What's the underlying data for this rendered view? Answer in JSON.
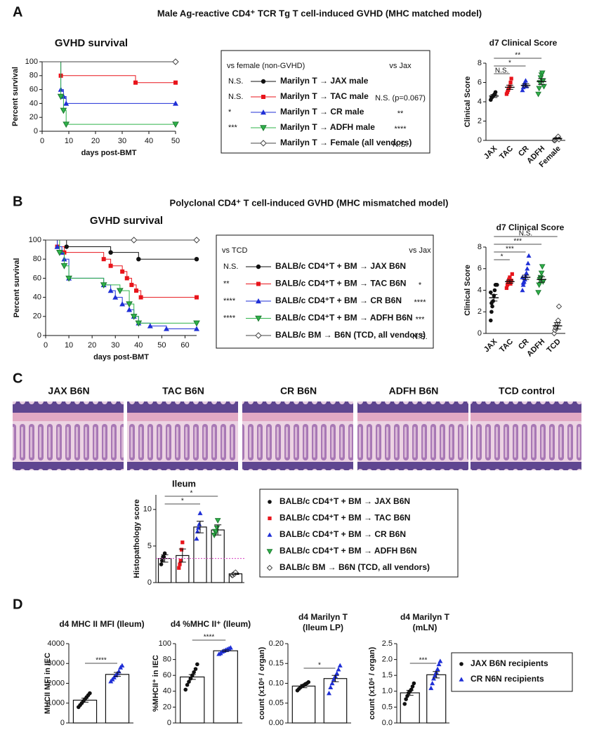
{
  "panel_labels": [
    "A",
    "B",
    "C",
    "D"
  ],
  "headings": [
    "Male Ag-reactive CD4⁺ TCR Tg T cell-induced GVHD (MHC matched model)",
    "Polyclonal CD4⁺ T cell-induced GVHD (MHC mismatched model)"
  ],
  "histology": {
    "labels": [
      "JAX B6N",
      "TAC B6N",
      "CR B6N",
      "ADFH B6N",
      "TCD control"
    ]
  },
  "panel_d_legend": {
    "names": [
      "JAX B6N recipients",
      "CR N6N recipients"
    ],
    "colors": [
      "#111111",
      "#1f2fd6"
    ],
    "markers": [
      "circle",
      "triangle"
    ]
  },
  "chart_data": [
    {
      "type": "survival",
      "title": "GVHD survival",
      "xlabel": "days post-BMT",
      "ylabel": "Percent survival",
      "xlim": [
        0,
        50
      ],
      "ylim": [
        0,
        100
      ],
      "xticks": [
        0,
        10,
        20,
        30,
        40,
        50
      ],
      "yticks": [
        0,
        20,
        40,
        60,
        80,
        100
      ],
      "legend_headers": [
        "vs female (non-GVHD)",
        "vs Jax"
      ],
      "series": [
        {
          "name": "Marilyn T → JAX male",
          "color": "#111111",
          "marker": "circle",
          "x": [
            0,
            50
          ],
          "values": [
            100,
            100
          ],
          "stat_left": "N.S."
        },
        {
          "name": "Marilyn T → TAC male",
          "color": "#e8141b",
          "marker": "square",
          "x": [
            0,
            7,
            35,
            50
          ],
          "values": [
            100,
            80,
            70,
            70
          ],
          "stat_left": "N.S.",
          "stat_right": "N.S. (p=0.067)"
        },
        {
          "name": "Marilyn T → CR male",
          "color": "#1f2fd6",
          "marker": "triangle",
          "x": [
            0,
            7,
            8,
            9,
            50
          ],
          "values": [
            100,
            60,
            50,
            40,
            40
          ],
          "stat_left": "*",
          "stat_right": "**"
        },
        {
          "name": "Marilyn T → ADFH male",
          "color": "#2fb34a",
          "marker": "triangle-down",
          "x": [
            0,
            7,
            8,
            9,
            50
          ],
          "values": [
            100,
            50,
            30,
            10,
            10
          ],
          "stat_left": "***",
          "stat_right": "****"
        },
        {
          "name": "Marilyn T → Female (all vendors)",
          "color": "#444444",
          "marker": "diamond",
          "x": [
            0,
            50
          ],
          "values": [
            100,
            100
          ],
          "stat_right": "N.S."
        }
      ]
    },
    {
      "type": "dot",
      "title": "d7 Clinical Score",
      "ylabel": "Clinical Score",
      "ylim": [
        0,
        8
      ],
      "yticks": [
        0,
        2,
        4,
        6,
        8
      ],
      "categories": [
        "JAX",
        "TAC",
        "CR",
        "ADFH",
        "Female"
      ],
      "colors": [
        "#111111",
        "#e8141b",
        "#1f2fd6",
        "#2fb34a",
        "#444444"
      ],
      "markers": [
        "circle",
        "square",
        "triangle",
        "triangle-down",
        "diamond"
      ],
      "values": [
        4.6,
        5.5,
        5.7,
        6.1,
        0.2
      ],
      "errors": [
        0.15,
        0.22,
        0.17,
        0.3,
        0.06
      ],
      "points": [
        [
          4.2,
          4.4,
          4.5,
          4.6,
          4.7,
          4.8,
          5.0
        ],
        [
          4.8,
          5.0,
          5.2,
          5.4,
          5.6,
          6.0,
          6.4
        ],
        [
          5.2,
          5.5,
          5.8,
          6.0,
          6.2,
          5.6
        ],
        [
          4.8,
          5.4,
          6.0,
          6.5,
          6.8,
          7.0,
          6.2,
          5.6
        ],
        [
          0,
          0,
          0.1,
          0.2,
          0.3,
          0.4,
          0.1
        ]
      ],
      "comparisons": [
        {
          "groups": [
            "JAX",
            "TAC"
          ],
          "label": "N.S."
        },
        {
          "groups": [
            "JAX",
            "CR"
          ],
          "label": "*"
        },
        {
          "groups": [
            "JAX",
            "ADFH"
          ],
          "label": "**"
        }
      ]
    },
    {
      "type": "survival",
      "title": "GVHD survival",
      "xlabel": "days post-BMT",
      "ylabel": "Percent survival",
      "xlim": [
        0,
        65
      ],
      "ylim": [
        0,
        100
      ],
      "xticks": [
        0,
        10,
        20,
        30,
        40,
        50,
        60
      ],
      "yticks": [
        0,
        20,
        40,
        60,
        80,
        100
      ],
      "legend_headers": [
        "vs TCD",
        "vs Jax"
      ],
      "series": [
        {
          "name": "BALB/c CD4⁺T + BM → JAX B6N",
          "color": "#111111",
          "marker": "circle",
          "x": [
            0,
            9,
            28,
            40,
            65
          ],
          "values": [
            100,
            93,
            87,
            80,
            80
          ],
          "stat_left": "N.S."
        },
        {
          "name": "BALB/c CD4⁺T + BM → TAC B6N",
          "color": "#e8141b",
          "marker": "square",
          "x": [
            0,
            5,
            8,
            25,
            28,
            33,
            35,
            37,
            39,
            41,
            65
          ],
          "values": [
            100,
            93,
            87,
            80,
            73,
            67,
            60,
            53,
            47,
            40,
            40
          ],
          "stat_left": "**",
          "stat_right": "*"
        },
        {
          "name": "BALB/c CD4⁺T + BM → CR B6N",
          "color": "#1f2fd6",
          "marker": "triangle",
          "x": [
            0,
            5,
            7,
            8,
            10,
            25,
            28,
            30,
            33,
            36,
            38,
            40,
            45,
            52,
            65
          ],
          "values": [
            100,
            93,
            87,
            80,
            60,
            53,
            47,
            40,
            33,
            27,
            20,
            13,
            10,
            7,
            7
          ],
          "stat_left": "****",
          "stat_right": "****"
        },
        {
          "name": "BALB/c CD4⁺T + BM → ADFH B6N",
          "color": "#2fb34a",
          "marker": "triangle-down",
          "x": [
            0,
            6,
            8,
            10,
            25,
            32,
            36,
            38,
            40,
            65
          ],
          "values": [
            100,
            87,
            73,
            60,
            53,
            47,
            33,
            20,
            13,
            13
          ],
          "stat_left": "****",
          "stat_right": "***"
        },
        {
          "name": "BALB/c BM → B6N (TCD, all vendors)",
          "color": "#444444",
          "marker": "diamond",
          "x": [
            0,
            38,
            65
          ],
          "values": [
            100,
            100,
            100
          ],
          "stat_right": "N.S."
        }
      ]
    },
    {
      "type": "dot",
      "title": "d7 Clinical Score",
      "ylabel": "Clinical Score",
      "ylim": [
        0,
        8
      ],
      "yticks": [
        0,
        2,
        4,
        6,
        8
      ],
      "categories": [
        "JAX",
        "TAC",
        "CR",
        "ADFH",
        "TCD"
      ],
      "colors": [
        "#111111",
        "#e8141b",
        "#1f2fd6",
        "#2fb34a",
        "#444444"
      ],
      "markers": [
        "circle",
        "square",
        "triangle",
        "triangle-down",
        "diamond"
      ],
      "values": [
        3.3,
        4.8,
        5.2,
        5.0,
        0.7
      ],
      "errors": [
        0.3,
        0.15,
        0.2,
        0.25,
        0.3
      ],
      "points": [
        [
          1.2,
          2.0,
          2.5,
          3.0,
          3.5,
          4.0,
          4.5,
          4.5,
          4.5,
          3.8,
          2.8
        ],
        [
          4.2,
          4.5,
          4.8,
          5.0,
          5.2,
          4.6,
          4.9,
          5.5
        ],
        [
          4.0,
          4.5,
          4.8,
          5.0,
          5.3,
          5.6,
          6.0,
          6.5,
          7.2,
          5.2,
          4.7
        ],
        [
          3.8,
          4.5,
          5.0,
          5.2,
          5.6,
          6.2,
          4.8
        ],
        [
          0,
          0.3,
          0.5,
          0.7,
          0.9,
          1.2,
          2.5
        ]
      ],
      "comparisons": [
        {
          "groups": [
            "JAX",
            "TAC"
          ],
          "label": "*"
        },
        {
          "groups": [
            "JAX",
            "CR"
          ],
          "label": "***"
        },
        {
          "groups": [
            "JAX",
            "ADFH"
          ],
          "label": "***"
        },
        {
          "groups": [
            "JAX",
            "TCD"
          ],
          "label": "N.S."
        }
      ]
    },
    {
      "type": "bar",
      "title": "Ileum",
      "ylabel": "Histopathology score",
      "ylim": [
        0,
        12
      ],
      "yticks": [
        0,
        5,
        10
      ],
      "categories": [
        null,
        null,
        null,
        null,
        null
      ],
      "legend_names": [
        "BALB/c CD4⁺T + BM → JAX B6N",
        "BALB/c CD4⁺T + BM → TAC B6N",
        "BALB/c CD4⁺T + BM → CR B6N",
        "BALB/c CD4⁺T + BM → ADFH B6N",
        "BALB/c BM → B6N (TCD, all vendors)"
      ],
      "colors": [
        "#111111",
        "#e8141b",
        "#1f2fd6",
        "#2fb34a",
        "#444444"
      ],
      "markers": [
        "circle",
        "square",
        "triangle",
        "triangle-down",
        "diamond"
      ],
      "values": [
        3.3,
        3.7,
        7.6,
        7.2,
        1.2
      ],
      "errors": [
        0.5,
        0.9,
        0.8,
        0.7,
        0.1
      ],
      "points": [
        [
          2.5,
          3,
          3.5,
          3.5,
          4
        ],
        [
          2,
          2.5,
          3,
          4.5,
          5.5
        ],
        [
          6,
          7,
          7.5,
          8,
          9.5
        ],
        [
          6.5,
          7,
          7,
          7.5,
          8.5
        ],
        [
          1,
          1,
          1.2,
          1.2,
          1.4
        ]
      ],
      "reference_line": 3.3,
      "comparisons": [
        {
          "groups": [
            0,
            2
          ],
          "label": "*"
        },
        {
          "groups": [
            0,
            3
          ],
          "label": "*"
        }
      ]
    },
    {
      "type": "bar",
      "title": [
        "d4 MHC II MFI (Ileum)"
      ],
      "ylabel": "MHCII MFI in IEC",
      "ylim": [
        0,
        4000
      ],
      "yticks": [
        0,
        1000,
        2000,
        3000,
        4000
      ],
      "categories": [
        null,
        null
      ],
      "colors": [
        "#111111",
        "#1f2fd6"
      ],
      "markers": [
        "circle",
        "triangle"
      ],
      "values": [
        1150,
        2450
      ],
      "errors": [
        100,
        100
      ],
      "points": [
        [
          800,
          900,
          1000,
          1100,
          1200,
          1300,
          1400,
          1500
        ],
        [
          2100,
          2200,
          2300,
          2400,
          2500,
          2600,
          2800,
          2900
        ]
      ],
      "comparisons": [
        {
          "groups": [
            0,
            1
          ],
          "label": "****"
        }
      ]
    },
    {
      "type": "bar",
      "title": [
        "d4 %MHC II⁺ (Ileum)"
      ],
      "ylabel": "%MHCII⁺ in IEC",
      "ylim": [
        0,
        100
      ],
      "yticks": [
        0,
        20,
        40,
        60,
        80,
        100
      ],
      "categories": [
        null,
        null
      ],
      "colors": [
        "#111111",
        "#1f2fd6"
      ],
      "markers": [
        "circle",
        "triangle"
      ],
      "values": [
        58,
        91
      ],
      "errors": [
        3,
        1
      ],
      "points": [
        [
          42,
          48,
          52,
          56,
          60,
          64,
          68,
          74
        ],
        [
          87,
          88,
          90,
          91,
          92,
          93,
          94,
          95
        ]
      ],
      "comparisons": [
        {
          "groups": [
            0,
            1
          ],
          "label": "****"
        }
      ]
    },
    {
      "type": "bar",
      "title": [
        "d4 Marilyn T",
        "(Ileum LP)"
      ],
      "ylabel": "count (x10⁶ / organ)",
      "ylim": [
        0,
        0.2
      ],
      "yticks": [
        {
          "value": 0,
          "label": "0.00"
        },
        0.05,
        {
          "value": 0.1,
          "label": "0.10"
        },
        0.15,
        {
          "value": 0.2,
          "label": "0.20"
        }
      ],
      "categories": [
        null,
        null
      ],
      "colors": [
        "#111111",
        "#1f2fd6"
      ],
      "markers": [
        "circle",
        "triangle"
      ],
      "values": [
        0.093,
        0.112
      ],
      "errors": [
        0.004,
        0.008
      ],
      "points": [
        [
          0.082,
          0.086,
          0.09,
          0.093,
          0.095,
          0.098,
          0.1,
          0.103
        ],
        [
          0.075,
          0.09,
          0.1,
          0.11,
          0.118,
          0.125,
          0.135,
          0.145
        ]
      ],
      "comparisons": [
        {
          "groups": [
            0,
            1
          ],
          "label": "*"
        }
      ]
    },
    {
      "type": "bar",
      "title": [
        "d4 Marilyn T",
        "(mLN)"
      ],
      "ylabel": "count (x10⁶ / organ)",
      "ylim": [
        0,
        2.5
      ],
      "yticks": [
        {
          "value": 0,
          "label": "0.0"
        },
        0.5,
        {
          "value": 1,
          "label": "1.0"
        },
        1.5,
        {
          "value": 2,
          "label": "2.0"
        },
        2.5
      ],
      "categories": [
        null,
        null
      ],
      "colors": [
        "#111111",
        "#1f2fd6"
      ],
      "markers": [
        "circle",
        "triangle"
      ],
      "values": [
        0.95,
        1.52
      ],
      "errors": [
        0.08,
        0.1
      ],
      "points": [
        [
          0.6,
          0.75,
          0.85,
          0.95,
          1.0,
          1.05,
          1.15,
          1.25
        ],
        [
          1.1,
          1.25,
          1.4,
          1.5,
          1.6,
          1.7,
          1.85,
          1.95
        ]
      ],
      "comparisons": [
        {
          "groups": [
            0,
            1
          ],
          "label": "***"
        }
      ]
    }
  ]
}
